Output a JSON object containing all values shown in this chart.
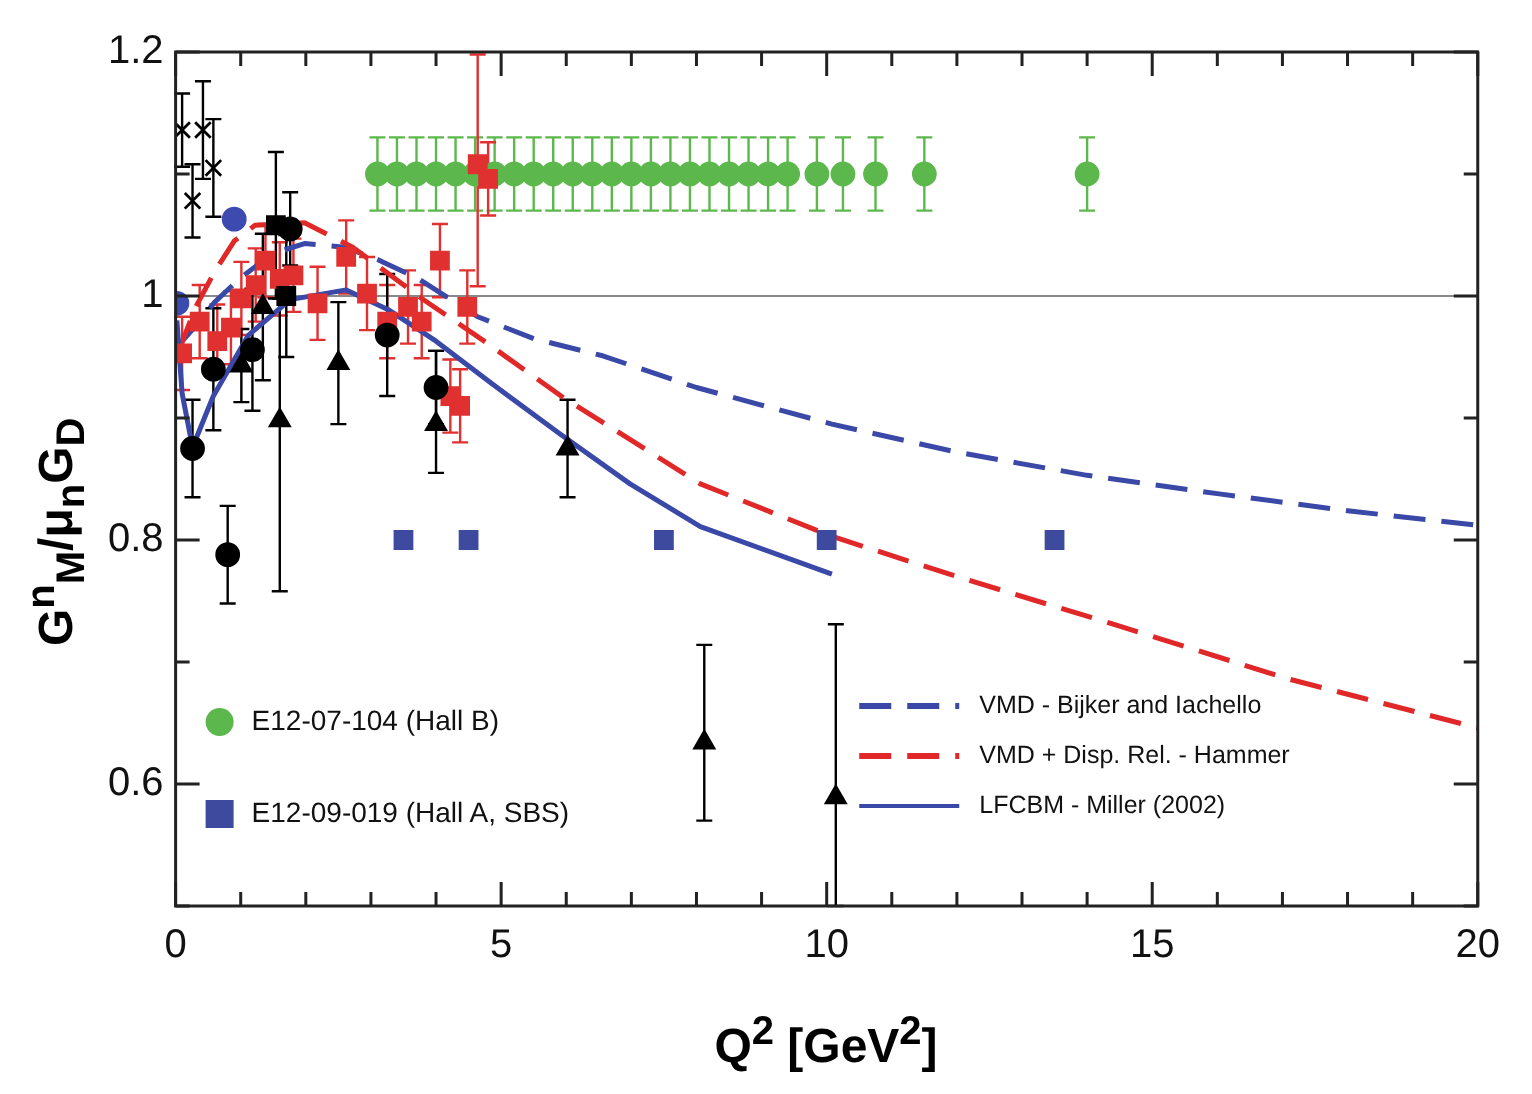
{
  "chart_data": {
    "type": "scatter",
    "xlabel": "Q$^{2}$ [GeV$^{2}$]",
    "ylabel": "G$^{n}$$_{M}$/μ$_{n}$G$_{D}$",
    "xlim": [
      0,
      20
    ],
    "ylim": [
      0.5,
      1.2
    ],
    "xticks": [
      0,
      {
        "value": 1,
        "label": null
      },
      {
        "value": 2,
        "label": null
      },
      {
        "value": 3,
        "label": null
      },
      {
        "value": 4,
        "label": null
      },
      5,
      {
        "value": 6,
        "label": null
      },
      {
        "value": 7,
        "label": null
      },
      {
        "value": 8,
        "label": null
      },
      {
        "value": 9,
        "label": null
      },
      10,
      {
        "value": 11,
        "label": null
      },
      {
        "value": 12,
        "label": null
      },
      {
        "value": 13,
        "label": null
      },
      {
        "value": 14,
        "label": null
      },
      15,
      {
        "value": 16,
        "label": null
      },
      {
        "value": 17,
        "label": null
      },
      {
        "value": 18,
        "label": null
      },
      {
        "value": 19,
        "label": null
      },
      20
    ],
    "yticks": [
      {
        "value": 0.5,
        "label": null
      },
      0.6,
      {
        "value": 0.7,
        "label": null
      },
      0.8,
      {
        "value": 0.9,
        "label": null
      },
      1.0,
      {
        "value": 1.1,
        "label": null
      },
      1.2
    ],
    "grid": false,
    "legend": "bottom",
    "ref_lines": [
      {
        "axis": "y",
        "value": 1.0,
        "color": "#888888"
      }
    ],
    "series": [
      {
        "type": "line",
        "name": "VMD - Bijker and Iachello",
        "color": "#3a48a8",
        "line_style": "dashed",
        "marker": "none",
        "x": [
          0.05,
          0.3,
          0.6,
          1.0,
          1.5,
          1.98,
          2.6,
          3.1,
          3.7,
          4.2,
          4.64,
          5.5,
          6.56,
          8.0,
          10.08,
          12.0,
          14.0,
          16.0,
          18.0,
          20.0
        ],
        "values": [
          0.96,
          0.975,
          0.995,
          1.015,
          1.035,
          1.043,
          1.04,
          1.03,
          1.015,
          0.998,
          0.983,
          0.965,
          0.951,
          0.925,
          0.895,
          0.872,
          0.853,
          0.838,
          0.824,
          0.812
        ]
      },
      {
        "type": "line",
        "name": "VMD + Disp. Rel. - Hammer",
        "color": "#e02828",
        "line_style": "dashed",
        "marker": "none",
        "x": [
          0.05,
          0.3,
          0.6,
          0.9,
          1.22,
          1.98,
          2.72,
          3.78,
          4.74,
          5.92,
          8.06,
          10.08,
          12.0,
          14.4,
          17.1,
          20.0
        ],
        "values": [
          0.955,
          0.99,
          1.02,
          1.045,
          1.058,
          1.06,
          1.04,
          0.998,
          0.963,
          0.918,
          0.846,
          0.803,
          0.77,
          0.731,
          0.686,
          0.646
        ]
      },
      {
        "type": "line",
        "name": "LFCBM - Miller (2002)",
        "color": "#3a48a8",
        "line_style": "solid",
        "marker": "none",
        "x": [
          0.02,
          0.1,
          0.26,
          0.58,
          1.12,
          1.76,
          2.62,
          3.26,
          4.0,
          4.86,
          5.9,
          6.98,
          8.06,
          10.08
        ],
        "values": [
          0.98,
          0.92,
          0.876,
          0.918,
          0.968,
          0.997,
          1.005,
          0.989,
          0.963,
          0.928,
          0.887,
          0.846,
          0.811,
          0.772
        ]
      },
      {
        "type": "scatter",
        "name": "E12-07-104 (Hall B)",
        "color": "#5cb84c",
        "marker": "circle",
        "x": [
          3.1,
          3.4,
          3.7,
          4.0,
          4.3,
          4.6,
          4.9,
          5.2,
          5.5,
          5.8,
          6.1,
          6.4,
          6.7,
          7.0,
          7.3,
          7.6,
          7.9,
          8.2,
          8.5,
          8.8,
          9.1,
          9.4,
          9.85,
          10.25,
          10.75,
          11.5,
          14.0
        ],
        "values": [
          1.1,
          1.1,
          1.1,
          1.1,
          1.1,
          1.1,
          1.1,
          1.1,
          1.1,
          1.1,
          1.1,
          1.1,
          1.1,
          1.1,
          1.1,
          1.1,
          1.1,
          1.1,
          1.1,
          1.1,
          1.1,
          1.1,
          1.1,
          1.1,
          1.1,
          1.1,
          1.1
        ],
        "errors": [
          0.03,
          0.03,
          0.03,
          0.03,
          0.03,
          0.03,
          0.03,
          0.03,
          0.03,
          0.03,
          0.03,
          0.03,
          0.03,
          0.03,
          0.03,
          0.03,
          0.03,
          0.03,
          0.03,
          0.03,
          0.03,
          0.03,
          0.03,
          0.03,
          0.03,
          0.03,
          0.03
        ]
      },
      {
        "type": "scatter",
        "name": "E12-09-019 (Hall A, SBS)",
        "color": "#3d4a9e",
        "marker": "square",
        "x": [
          3.5,
          4.5,
          7.5,
          10.0,
          13.5
        ],
        "values": [
          0.8,
          0.8,
          0.8,
          0.8,
          0.8
        ]
      },
      {
        "type": "scatter",
        "color": "#e03030",
        "marker": "square",
        "x": [
          0.1,
          0.37,
          0.64,
          0.85,
          1.01,
          1.23,
          1.38,
          1.6,
          1.81,
          2.18,
          2.62,
          2.94,
          3.25,
          3.57,
          3.78,
          4.06,
          4.22,
          4.37,
          4.48,
          4.64,
          4.8
        ],
        "values": [
          0.953,
          0.979,
          0.963,
          0.974,
          0.998,
          1.009,
          1.029,
          1.014,
          1.017,
          0.994,
          1.032,
          1.002,
          0.979,
          0.991,
          0.979,
          1.029,
          0.918,
          0.91,
          0.991,
          1.108,
          1.096
        ],
        "errors": [
          0.03,
          0.03,
          0.03,
          0.03,
          0.03,
          0.03,
          0.03,
          0.03,
          0.03,
          0.03,
          0.03,
          0.03,
          0.03,
          0.03,
          0.03,
          0.03,
          0.03,
          0.03,
          0.03,
          [
            1.008,
            1.198
          ],
          0.03
        ]
      },
      {
        "type": "scatter",
        "color": "#000000",
        "marker": "circle",
        "x": [
          0.26,
          0.58,
          0.8,
          1.18
        ],
        "values": [
          0.875,
          0.94,
          0.788,
          0.956
        ],
        "errors": [
          0.04,
          0.05,
          0.04,
          0.05
        ]
      },
      {
        "type": "scatter",
        "color": "#000000",
        "marker": "triangle",
        "x": [
          1.01,
          1.34,
          1.6,
          2.5,
          4.0,
          6.02,
          8.12,
          10.14
        ],
        "values": [
          0.943,
          0.991,
          0.898,
          0.945,
          0.895,
          0.875,
          0.634,
          0.589
        ],
        "errors": [
          0.03,
          0.06,
          [
            0.758,
            0.998
          ],
          0.05,
          [
            0.855,
            0.955
          ],
          0.04,
          [
            0.57,
            0.714
          ],
          [
            0.5,
            0.731
          ]
        ]
      },
      {
        "type": "scatter",
        "color": "#000000",
        "marker": "square",
        "x": [
          1.54,
          1.7
        ],
        "values": [
          1.058,
          1.0
        ],
        "errors": [
          0.06,
          0.05
        ]
      },
      {
        "type": "scatter",
        "color": "#000000",
        "marker": "circle",
        "x": [
          1.76,
          3.25,
          4.0
        ],
        "values": [
          1.055,
          0.968,
          0.925
        ],
        "errors": [
          0.03,
          0.05,
          0.03
        ]
      },
      {
        "type": "scatter",
        "color": "#000000",
        "marker": "cross",
        "x": [
          0.1,
          0.26,
          0.42,
          0.58
        ],
        "values": [
          1.136,
          1.078,
          1.136,
          1.105
        ],
        "errors": [
          0.03,
          0.03,
          0.04,
          0.04
        ]
      },
      {
        "type": "scatter",
        "color": "#3d4ab0",
        "marker": "circle",
        "x": [
          0.02,
          0.9
        ],
        "values": [
          0.994,
          1.063
        ]
      }
    ]
  }
}
